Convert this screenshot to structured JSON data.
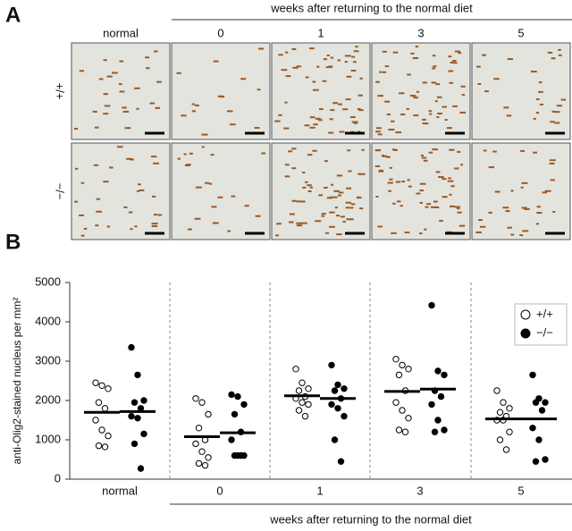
{
  "panel_a": {
    "label": "A",
    "header": "weeks after returning to the normal diet",
    "columns": [
      "normal",
      "0",
      "1",
      "3",
      "5"
    ],
    "rows": [
      "+/+",
      "−/−"
    ]
  },
  "chart_data": {
    "type": "dotplot",
    "label": "B",
    "ylabel": "anti-Olig2-stained nucleus per mm²",
    "xlabel": "weeks after returning to the normal diet",
    "categories": [
      "normal",
      "0",
      "1",
      "3",
      "5"
    ],
    "ylim": [
      0,
      5000
    ],
    "yticks": [
      0,
      1000,
      2000,
      3000,
      4000,
      5000
    ],
    "legend": "top-right",
    "series": [
      {
        "name": "+/+",
        "color": "#ffffff",
        "values": [
          [
            2450,
            2380,
            2300,
            1950,
            1800,
            1500,
            1250,
            1100,
            850,
            820
          ],
          [
            2050,
            1950,
            1650,
            1300,
            1000,
            900,
            700,
            550,
            400,
            350
          ],
          [
            2800,
            2450,
            2300,
            2250,
            2100,
            2050,
            1950,
            1900,
            1750,
            1600
          ],
          [
            3050,
            2900,
            2800,
            2650,
            2250,
            1950,
            1750,
            1550,
            1250,
            1200
          ],
          [
            2250,
            1950,
            1800,
            1700,
            1600,
            1500,
            1500,
            1200,
            1000,
            750
          ]
        ],
        "means": [
          1700,
          1080,
          2120,
          2230,
          1530
        ]
      },
      {
        "name": "−/−",
        "color": "#000000",
        "values": [
          [
            3350,
            2650,
            2000,
            1950,
            1800,
            1600,
            1550,
            1150,
            900,
            270
          ],
          [
            2150,
            2100,
            1900,
            1650,
            1200,
            1000,
            600,
            600,
            600,
            600
          ],
          [
            2900,
            2400,
            2300,
            2250,
            2050,
            1900,
            1800,
            1600,
            1000,
            450
          ],
          [
            4420,
            2750,
            2650,
            2250,
            2100,
            1900,
            1500,
            1250,
            1200
          ],
          [
            2650,
            2050,
            1950,
            1950,
            1750,
            1300,
            1000,
            500,
            450
          ]
        ],
        "means": [
          1720,
          1180,
          2050,
          2290,
          1530
        ]
      }
    ]
  }
}
